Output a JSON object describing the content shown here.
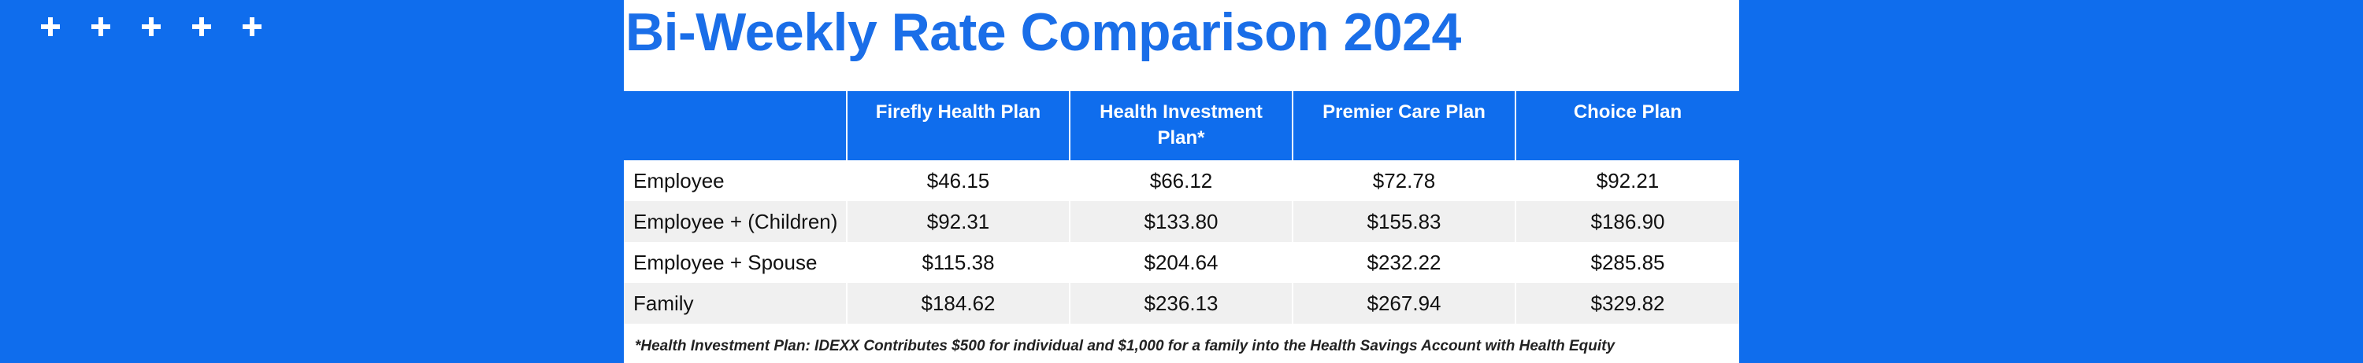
{
  "decor": {
    "plus_count": 5,
    "plus_color": "#ffffff",
    "background": "#0f6ded"
  },
  "title": "Bi-Weekly Rate Comparison 2024",
  "colors": {
    "accent": "#1a6ee8",
    "header_bg": "#0f6ded",
    "row_alt": "#f0f0f0"
  },
  "table": {
    "headers": [
      "",
      "Firefly Health Plan",
      "Health Investment Plan*",
      "Premier Care Plan",
      "Choice Plan"
    ],
    "rows": [
      {
        "label": "Employee",
        "values": [
          "$46.15",
          "$66.12",
          "$72.78",
          "$92.21"
        ]
      },
      {
        "label": "Employee + (Children)",
        "values": [
          "$92.31",
          "$133.80",
          "$155.83",
          "$186.90"
        ]
      },
      {
        "label": "Employee + Spouse",
        "values": [
          "$115.38",
          "$204.64",
          "$232.22",
          "$285.85"
        ]
      },
      {
        "label": "Family",
        "values": [
          "$184.62",
          "$236.13",
          "$267.94",
          "$329.82"
        ]
      }
    ]
  },
  "footnote": "*Health Investment Plan: IDEXX Contributes $500 for individual and $1,000 for a family into the Health Savings Account with Health Equity"
}
